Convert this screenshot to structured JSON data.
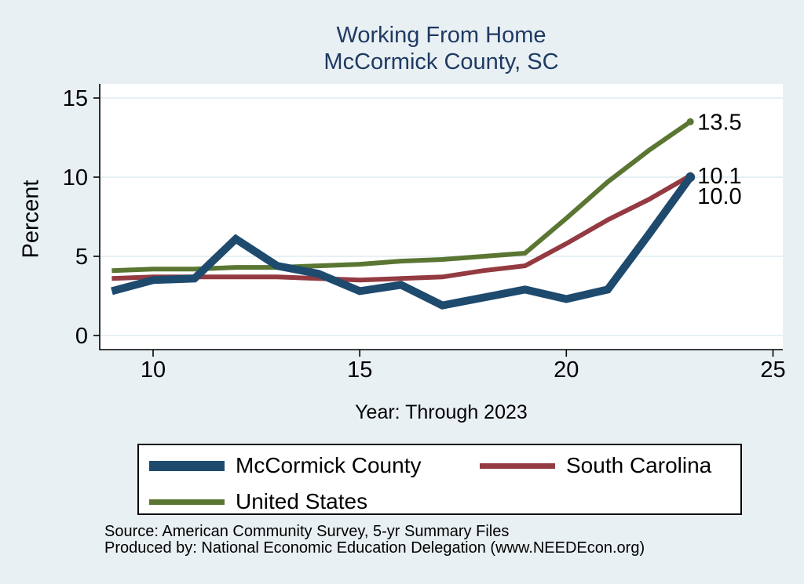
{
  "title": {
    "line1": "Working From Home",
    "line2": "McCormick County, SC"
  },
  "colors": {
    "background": "#e9f0f3",
    "plot_background": "#ffffff",
    "title_text": "#1f3a63",
    "gridline": "#dfecf0",
    "axis": "#000000",
    "mccormick_county": "#1e4a6e",
    "south_carolina": "#943a41",
    "united_states": "#5a7632"
  },
  "chart_data": {
    "type": "line",
    "title": "Working From Home — McCormick County, SC",
    "xlabel": "Year: Through 2023",
    "ylabel": "Percent",
    "x": [
      9,
      10,
      11,
      12,
      13,
      14,
      15,
      16,
      17,
      18,
      19,
      20,
      21,
      22,
      23
    ],
    "xticks": [
      10,
      15,
      20,
      25
    ],
    "yticks": [
      0,
      5,
      10,
      15
    ],
    "xlim": [
      8.7,
      25.3
    ],
    "ylim": [
      0,
      15
    ],
    "grid": true,
    "legend_position": "bottom",
    "series": [
      {
        "name": "McCormick County",
        "color": "#1e4a6e",
        "width": 10,
        "values": [
          2.8,
          3.5,
          3.6,
          6.1,
          4.4,
          3.9,
          2.8,
          3.2,
          1.9,
          2.4,
          2.9,
          2.3,
          2.9,
          6.4,
          10.0
        ],
        "end_label": "10.0"
      },
      {
        "name": "South Carolina",
        "color": "#943a41",
        "width": 6,
        "values": [
          3.6,
          3.7,
          3.7,
          3.7,
          3.7,
          3.6,
          3.5,
          3.6,
          3.7,
          4.1,
          4.4,
          5.8,
          7.3,
          8.6,
          10.1
        ],
        "end_label": "10.1"
      },
      {
        "name": "United States",
        "color": "#5a7632",
        "width": 6,
        "values": [
          4.1,
          4.2,
          4.2,
          4.3,
          4.3,
          4.4,
          4.5,
          4.7,
          4.8,
          5.0,
          5.2,
          7.4,
          9.7,
          11.7,
          13.5
        ],
        "end_label": "13.5"
      }
    ]
  },
  "footer": {
    "source": "Source: American Community Survey, 5-yr Summary Files",
    "produced_by": "Produced by: National Economic Education Delegation (www.NEEDEcon.org)"
  }
}
